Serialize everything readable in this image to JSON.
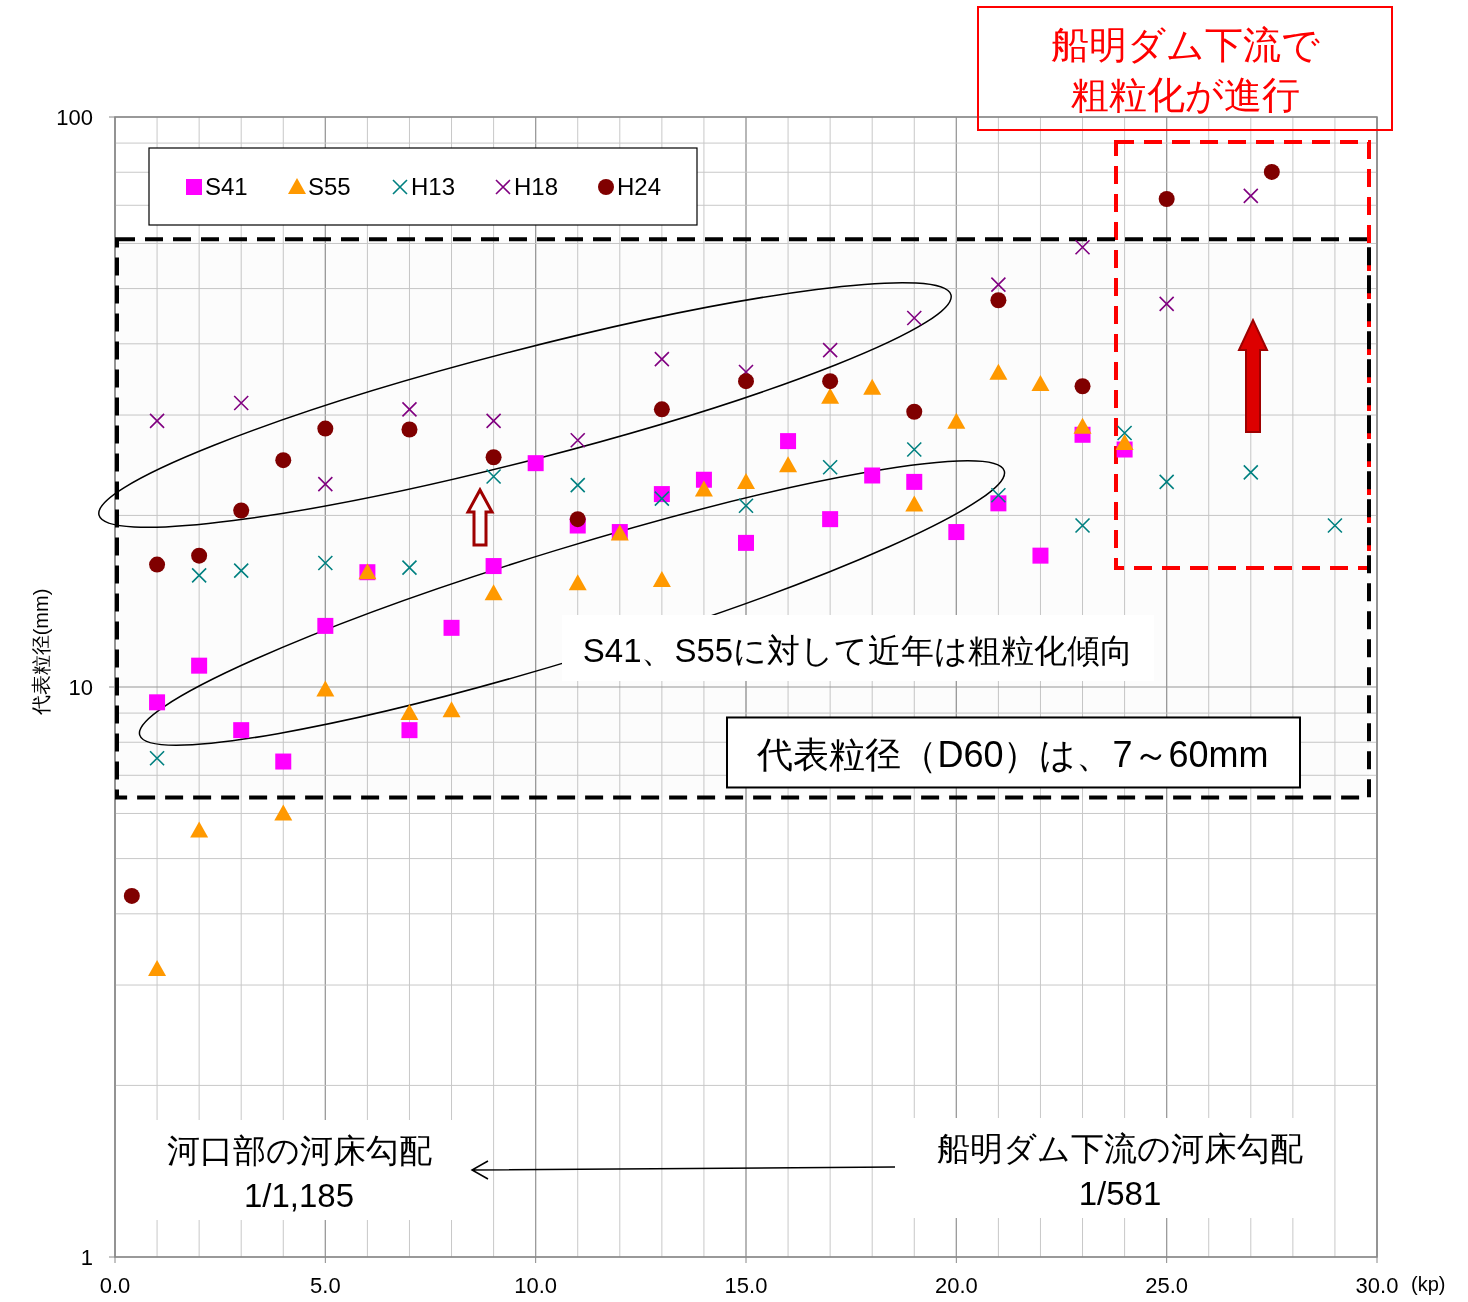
{
  "chart_data": {
    "type": "scatter",
    "ylabel": "代表粒径(mm)",
    "xlabel": "(kp)",
    "xlim": [
      0,
      30
    ],
    "ylim": [
      1,
      100
    ],
    "log": "y",
    "grid": true,
    "legend": "top left",
    "xticks": [
      {
        "value": 0,
        "label": "0.0"
      },
      {
        "value": 5,
        "label": "5.0"
      },
      {
        "value": 10,
        "label": "10.0"
      },
      {
        "value": 15,
        "label": "15.0"
      },
      {
        "value": 20,
        "label": "20.0"
      },
      {
        "value": 25,
        "label": "25.0"
      },
      {
        "value": 30,
        "label": "30.0"
      }
    ],
    "yticks": [
      1,
      10,
      100
    ],
    "series": [
      {
        "name": "S41",
        "color": "#ff00ff",
        "marker": "square",
        "x": [
          1,
          2,
          3,
          4,
          5,
          6,
          7,
          8,
          9,
          10,
          11,
          12,
          13,
          14,
          15,
          16,
          17,
          18,
          19,
          20,
          21,
          22,
          23,
          24
        ],
        "values": [
          9.4,
          10.9,
          8.4,
          7.4,
          12.8,
          15.9,
          8.4,
          12.7,
          16.3,
          24.7,
          19.2,
          18.7,
          21.8,
          23.1,
          17.9,
          27.0,
          19.7,
          23.5,
          22.9,
          18.7,
          21.0,
          17.0,
          27.7,
          26.1
        ]
      },
      {
        "name": "S55",
        "color": "#ff9900",
        "marker": "triangle",
        "x": [
          1,
          2,
          4,
          5,
          6,
          7,
          8,
          9,
          11,
          12,
          13,
          14,
          15,
          16,
          17,
          18,
          19,
          20,
          21,
          22,
          23,
          24
        ],
        "values": [
          3.2,
          5.6,
          6.0,
          9.9,
          15.9,
          9.0,
          9.1,
          14.6,
          15.2,
          18.6,
          15.4,
          22.2,
          22.9,
          24.5,
          32.3,
          33.5,
          20.9,
          29.2,
          35.6,
          34.0,
          28.6,
          26.8
        ]
      },
      {
        "name": "H13",
        "color": "#008080",
        "marker": "cross",
        "x": [
          1,
          2,
          3,
          5,
          7,
          9,
          11,
          13,
          15,
          17,
          19,
          21,
          23,
          24,
          25,
          27,
          29
        ],
        "values": [
          7.5,
          15.7,
          16.0,
          16.5,
          16.2,
          23.4,
          22.6,
          21.4,
          20.8,
          24.3,
          26.1,
          21.7,
          19.2,
          27.9,
          22.9,
          23.8,
          19.2
        ]
      },
      {
        "name": "H18",
        "color": "#800080",
        "marker": "cross",
        "x": [
          1,
          3,
          5,
          7,
          9,
          11,
          13,
          15,
          17,
          19,
          21,
          23,
          25,
          27
        ],
        "values": [
          29.3,
          31.5,
          22.7,
          30.7,
          29.3,
          27.1,
          37.6,
          35.7,
          39.0,
          44.4,
          50.8,
          59.1,
          47.0,
          72.7
        ]
      },
      {
        "name": "H24",
        "color": "#800000",
        "marker": "circle",
        "x": [
          0.4,
          1,
          2,
          3,
          4,
          5,
          7,
          9,
          11,
          13,
          15,
          17,
          19,
          21,
          23,
          25,
          27.5
        ],
        "values": [
          4.3,
          16.4,
          17.0,
          20.4,
          25.0,
          28.4,
          28.3,
          25.3,
          19.7,
          30.7,
          34.4,
          34.4,
          30.4,
          47.7,
          33.7,
          71.8,
          80.1
        ]
      }
    ],
    "bands": [
      {
        "axis": "y",
        "from": 6.4,
        "to": 61,
        "label": "代表粒径（D60）は、7～60mm",
        "color": "#000000"
      }
    ],
    "annotations": [
      "船明ダム下流で",
      "粗粒化が進行",
      "S41、S55に対して近年は粗粒化傾向",
      "河口部の河床勾配\n1/1,185",
      "船明ダム下流の河床勾配\n1/581"
    ]
  }
}
